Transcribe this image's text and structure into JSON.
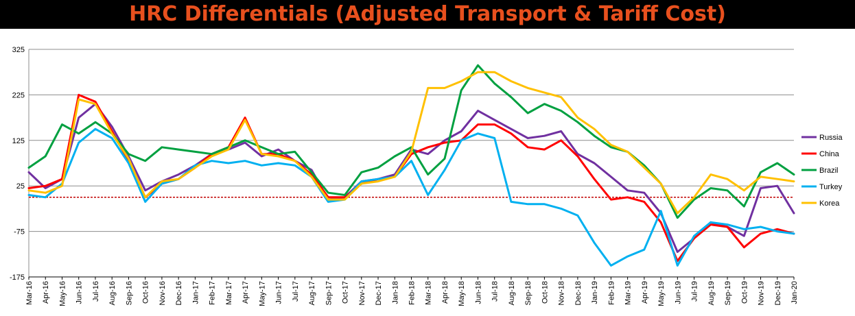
{
  "header": {
    "title": "HRC Differentials (Adjusted Transport & Tariff Cost)"
  },
  "colors": {
    "title_bg": "#000000",
    "title_text": "#e8501e",
    "zero_line": "#c00000"
  },
  "chart_data": {
    "type": "line",
    "title": "HRC Differentials (Adjusted Transport & Tariff Cost)",
    "xlabel": "",
    "ylabel": "",
    "ylim": [
      -175,
      325
    ],
    "yticks": [
      325,
      225,
      125,
      25,
      -75,
      -175
    ],
    "reference_line": {
      "y": 0,
      "style": "dashed",
      "color": "#c00000"
    },
    "grid": "horizontal",
    "legend_position": "right",
    "x": [
      "Mar-16",
      "Apr-16",
      "May-16",
      "Jun-16",
      "Jul-16",
      "Aug-16",
      "Sep-16",
      "Oct-16",
      "Nov-16",
      "Dec-16",
      "Jan-17",
      "Feb-17",
      "Mar-17",
      "Apr-17",
      "May-17",
      "Jun-17",
      "Jul-17",
      "Aug-17",
      "Sep-17",
      "Oct-17",
      "Nov-17",
      "Dec-17",
      "Jan-18",
      "Feb-18",
      "Mar-18",
      "Apr-18",
      "May-18",
      "Jun-18",
      "Jul-18",
      "Aug-18",
      "Sep-18",
      "Oct-18",
      "Nov-18",
      "Dec-18",
      "Jan-19",
      "Feb-19",
      "Mar-19",
      "Apr-19",
      "May-19",
      "Jun-19",
      "Jul-19",
      "Aug-19",
      "Sep-19",
      "Oct-19",
      "Nov-19",
      "Dec-19",
      "Jan-20"
    ],
    "series": [
      {
        "name": "Russia",
        "color": "#7030a0",
        "values": [
          55,
          20,
          40,
          175,
          205,
          155,
          90,
          15,
          35,
          50,
          70,
          95,
          105,
          120,
          90,
          105,
          80,
          60,
          -5,
          0,
          35,
          40,
          50,
          105,
          95,
          125,
          145,
          190,
          170,
          150,
          130,
          135,
          145,
          95,
          75,
          45,
          15,
          10,
          -35,
          -120,
          -90,
          -55,
          -65,
          -85,
          20,
          25,
          -35
        ]
      },
      {
        "name": "China",
        "color": "#ff0000",
        "values": [
          20,
          25,
          40,
          225,
          210,
          145,
          80,
          0,
          30,
          40,
          65,
          95,
          110,
          175,
          95,
          95,
          80,
          50,
          0,
          0,
          30,
          40,
          45,
          95,
          110,
          120,
          125,
          160,
          160,
          140,
          110,
          105,
          125,
          90,
          40,
          -5,
          0,
          -10,
          -55,
          -140,
          -90,
          -60,
          -65,
          -110,
          -80,
          -70,
          -80
        ]
      },
      {
        "name": "Brazil",
        "color": "#00a040",
        "values": [
          65,
          90,
          160,
          140,
          165,
          140,
          95,
          80,
          110,
          105,
          100,
          95,
          110,
          125,
          110,
          95,
          100,
          55,
          10,
          5,
          55,
          65,
          90,
          110,
          50,
          85,
          235,
          290,
          250,
          220,
          185,
          205,
          190,
          165,
          135,
          110,
          100,
          70,
          30,
          -45,
          -5,
          20,
          15,
          -20,
          55,
          75,
          50
        ]
      },
      {
        "name": "Turkey",
        "color": "#00b0f0",
        "values": [
          5,
          0,
          30,
          120,
          150,
          130,
          75,
          -10,
          30,
          40,
          70,
          80,
          75,
          80,
          70,
          75,
          70,
          45,
          -10,
          -5,
          35,
          40,
          45,
          80,
          5,
          60,
          125,
          140,
          130,
          -10,
          -15,
          -15,
          -25,
          -40,
          -100,
          -150,
          -130,
          -115,
          -30,
          -150,
          -85,
          -55,
          -60,
          -70,
          -65,
          -75,
          -80
        ]
      },
      {
        "name": "Korea",
        "color": "#ffc000",
        "values": [
          15,
          10,
          25,
          215,
          205,
          140,
          85,
          0,
          35,
          40,
          65,
          90,
          105,
          170,
          95,
          90,
          80,
          45,
          -5,
          -5,
          30,
          35,
          45,
          100,
          240,
          240,
          255,
          275,
          275,
          255,
          240,
          230,
          220,
          175,
          150,
          115,
          100,
          65,
          30,
          -35,
          0,
          50,
          40,
          15,
          45,
          40,
          35
        ]
      }
    ]
  }
}
